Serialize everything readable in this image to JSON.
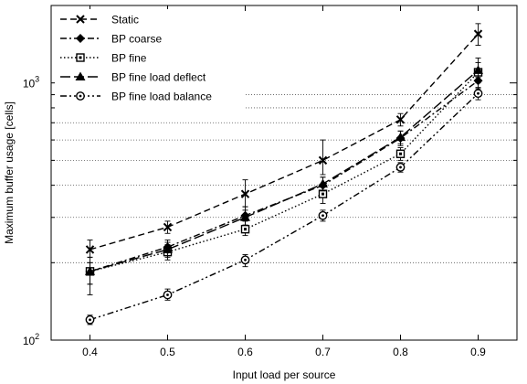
{
  "chart_data": {
    "type": "line",
    "title": "",
    "xlabel": "Input load per source",
    "ylabel": "Maximum buffer usage [cells]",
    "yscale": "log",
    "xlim": [
      0.35,
      0.95
    ],
    "ylim": [
      100,
      2000
    ],
    "x_ticks": [
      0.4,
      0.5,
      0.6,
      0.7,
      0.8,
      0.9
    ],
    "x_tick_labels": [
      "0.4",
      "0.5",
      "0.6",
      "0.7",
      "0.8",
      "0.9"
    ],
    "y_tick_labels": [
      {
        "value": 100,
        "base": "10",
        "exp": "2"
      },
      {
        "value": 1000,
        "base": "10",
        "exp": "3"
      }
    ],
    "gridlines_y": [
      200,
      300,
      400,
      500,
      600,
      700,
      800,
      900
    ],
    "grid": "horizontal dotted at minor log ticks",
    "legend_position": "top-left",
    "x": [
      0.4,
      0.5,
      0.6,
      0.7,
      0.8,
      0.9
    ],
    "series": [
      {
        "name": "Static",
        "marker": "x-cross",
        "dash": "dashed",
        "values": [
          225,
          275,
          370,
          500,
          720,
          1550
        ],
        "err_low": [
          210,
          260,
          330,
          440,
          680,
          1400
        ],
        "err_high": [
          245,
          290,
          420,
          600,
          760,
          1700
        ]
      },
      {
        "name": "BP coarse",
        "marker": "diamond",
        "dash": "dash-dot",
        "values": [
          185,
          230,
          305,
          400,
          610,
          1020
        ],
        "err_low": [
          165,
          215,
          280,
          370,
          570,
          950
        ],
        "err_high": [
          200,
          245,
          330,
          430,
          650,
          1100
        ]
      },
      {
        "name": "BP fine",
        "marker": "square",
        "dash": "dotted",
        "values": [
          185,
          220,
          270,
          370,
          530,
          1100
        ],
        "err_low": [
          165,
          205,
          255,
          340,
          500,
          1000
        ],
        "err_high": [
          200,
          235,
          290,
          400,
          560,
          1200
        ]
      },
      {
        "name": "BP fine load deflect",
        "marker": "triangle",
        "dash": "long-dash",
        "values": [
          185,
          225,
          300,
          405,
          615,
          1120
        ],
        "err_low": [
          150,
          210,
          280,
          380,
          580,
          1050
        ],
        "err_high": [
          210,
          240,
          320,
          430,
          650,
          1250
        ]
      },
      {
        "name": "BP fine load balance",
        "marker": "circle",
        "dash": "dash-dot-dot",
        "values": [
          120,
          150,
          205,
          305,
          470,
          910
        ],
        "err_low": [
          115,
          143,
          193,
          290,
          450,
          860
        ],
        "err_high": [
          125,
          158,
          215,
          320,
          490,
          960
        ]
      }
    ]
  },
  "colors": {
    "line": "#000000",
    "grid": "#555555",
    "background": "#ffffff"
  }
}
